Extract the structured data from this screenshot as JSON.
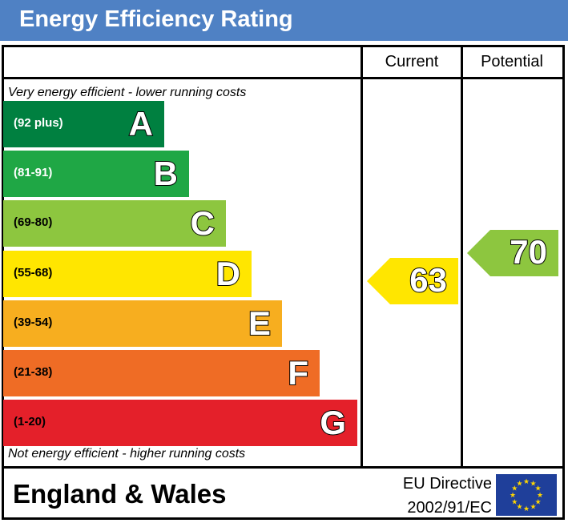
{
  "title": "Energy Efficiency Rating",
  "columns": {
    "current": "Current",
    "potential": "Potential"
  },
  "notes": {
    "top": "Very energy efficient - lower running costs",
    "bottom": "Not energy efficient - higher running costs"
  },
  "footer": {
    "region": "England & Wales",
    "directive_line1": "EU Directive",
    "directive_line2": "2002/91/EC"
  },
  "colors": {
    "header": "#4f81c4"
  },
  "chart_data": {
    "type": "bar",
    "title": "Energy Efficiency Rating",
    "bands": [
      {
        "letter": "A",
        "range": "(92 plus)",
        "color": "#008040"
      },
      {
        "letter": "B",
        "range": "(81-91)",
        "color": "#1fa745"
      },
      {
        "letter": "C",
        "range": "(69-80)",
        "color": "#8dc63f"
      },
      {
        "letter": "D",
        "range": "(55-68)",
        "color": "#ffe600"
      },
      {
        "letter": "E",
        "range": "(39-54)",
        "color": "#f7ae1f"
      },
      {
        "letter": "F",
        "range": "(21-38)",
        "color": "#ef6c25"
      },
      {
        "letter": "G",
        "range": "(1-20)",
        "color": "#e4202a"
      }
    ],
    "current": {
      "value": "63",
      "band": "D",
      "color": "#ffe600"
    },
    "potential": {
      "value": "70",
      "band": "C",
      "color": "#8dc63f"
    }
  }
}
